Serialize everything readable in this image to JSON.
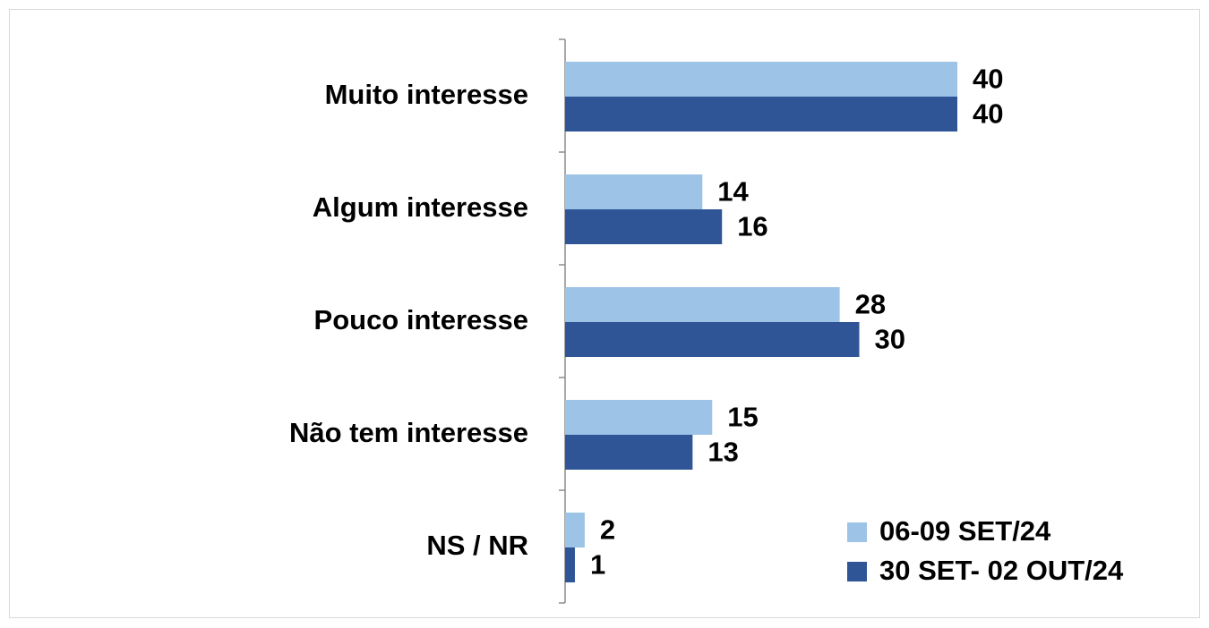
{
  "chart_data": {
    "type": "bar",
    "orientation": "horizontal",
    "categories": [
      "Muito interesse",
      "Algum interesse",
      "Pouco interesse",
      "Não tem interesse",
      "NS / NR"
    ],
    "series": [
      {
        "name": "06-09 SET/24",
        "color": "#9dc3e6",
        "values": [
          40,
          14,
          28,
          15,
          2
        ]
      },
      {
        "name": "30 SET- 02 OUT/24",
        "color": "#2f5597",
        "values": [
          40,
          16,
          30,
          13,
          1
        ]
      }
    ],
    "legend": "lower right"
  }
}
